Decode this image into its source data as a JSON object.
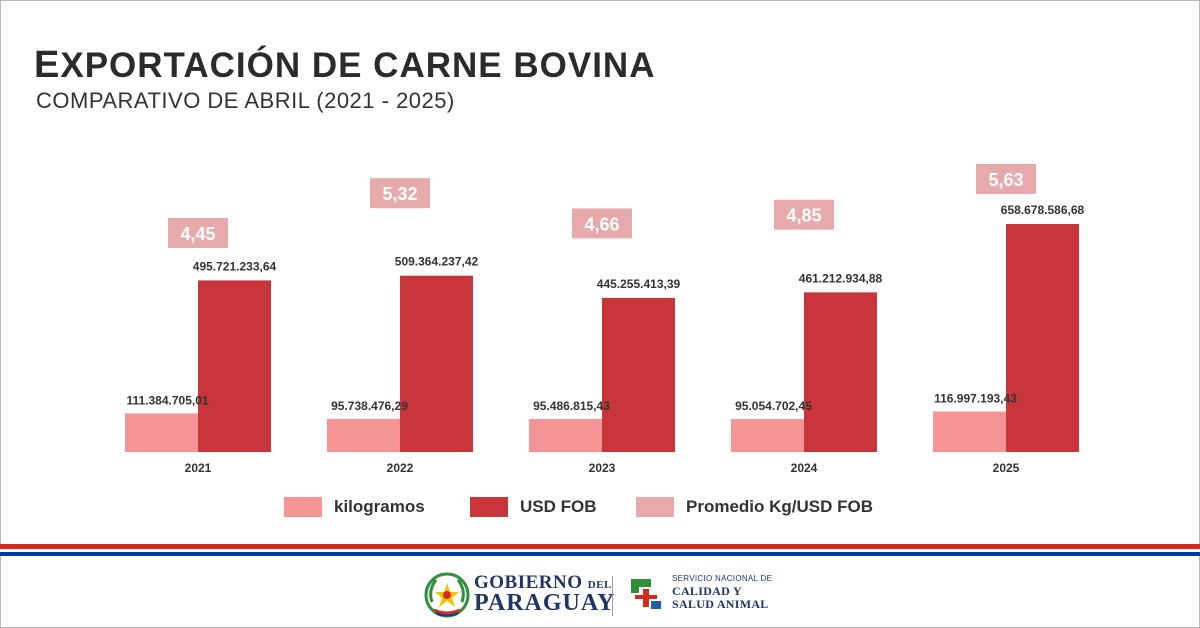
{
  "header": {
    "title_first": "E",
    "title_rest": "XPORTACIÓN DE CARNE BOVINA",
    "subtitle": "COMPARATIVO DE ABRIL (2021 - 2025)"
  },
  "chart_data": {
    "type": "bar",
    "categories": [
      "2021",
      "2022",
      "2023",
      "2024",
      "2025"
    ],
    "series": [
      {
        "name": "kilogramos",
        "color": "#f59494",
        "values": [
          111384705.01,
          95738476.29,
          95486815.43,
          95054702.45,
          116997193.43
        ],
        "labels": [
          "111.384.705,01",
          "95.738.476,29",
          "95.486.815,43",
          "95.054.702,45",
          "116.997.193,43"
        ]
      },
      {
        "name": "USD FOB",
        "color": "#c8363c",
        "values": [
          495721233.64,
          509364237.42,
          445255413.39,
          461212934.88,
          658678586.68
        ],
        "labels": [
          "495.721.233,64",
          "509.364.237,42",
          "445.255.413,39",
          "461.212.934,88",
          "658.678.586,68"
        ]
      },
      {
        "name": "Promedio Kg/USD FOB",
        "color": "#e6aaab",
        "values": [
          4.45,
          5.32,
          4.66,
          4.85,
          5.63
        ],
        "labels": [
          "4,45",
          "5,32",
          "4,66",
          "4,85",
          "5,63"
        ]
      }
    ],
    "legend_position": "bottom",
    "grid": false
  },
  "footer": {
    "gov_line1": "GOBIERNO",
    "gov_line1_small": "DEL",
    "gov_line2": "PARAGUAY",
    "senacsa_line1": "SERVICIO NACIONAL DE",
    "senacsa_line2": "CALIDAD Y",
    "senacsa_line3": "SALUD ANIMAL",
    "colors": {
      "red": "#d52b1e",
      "blue": "#0038a8",
      "navy": "#1f3566",
      "green": "#2f8f3a"
    }
  }
}
